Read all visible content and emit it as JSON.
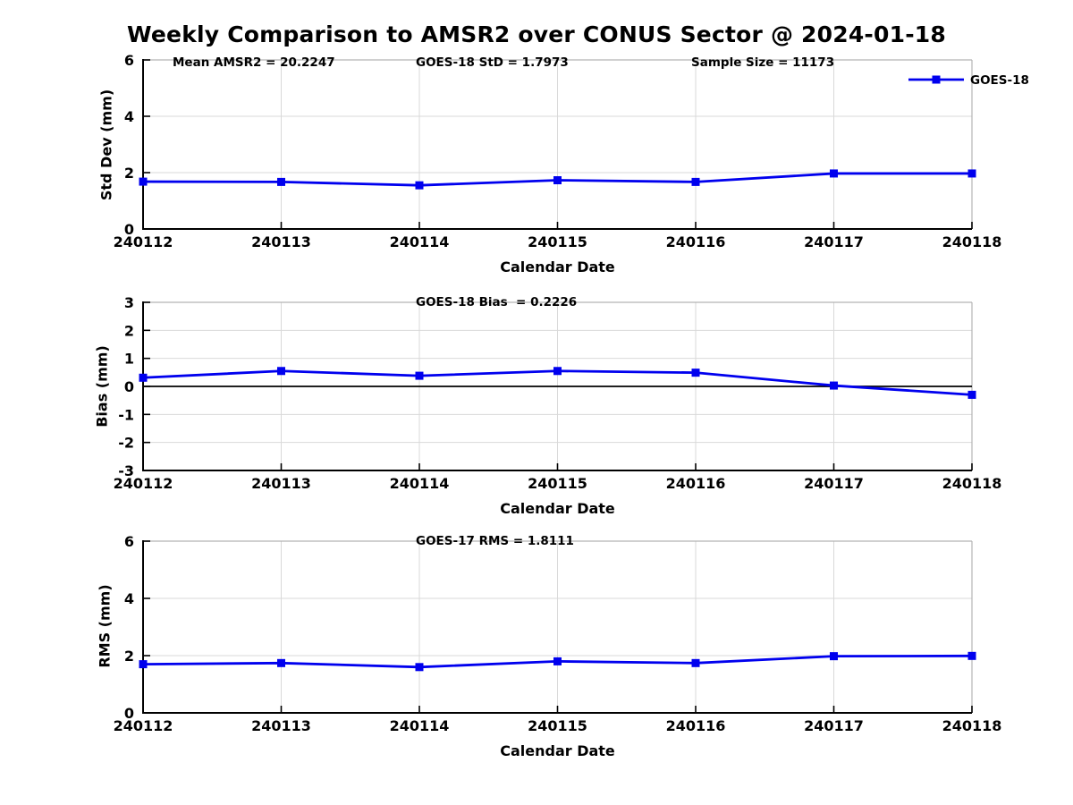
{
  "page": {
    "title": "Weekly Comparison to AMSR2 over CONUS Sector @ 2024-01-18"
  },
  "colors": {
    "line": "#0000EE",
    "marker": "#0000EE",
    "grid": "#d9d9d9",
    "spine": "#000000",
    "box": "#b3b3b3",
    "zero_line": "#000000",
    "text": "#000000",
    "background": "#ffffff"
  },
  "chart_data": [
    {
      "type": "line",
      "name": "std-dev",
      "annotations": [
        "Mean AMSR2 = 20.2247",
        "GOES-18 StD = 1.7973",
        "Sample Size = 11173"
      ],
      "categories": [
        "240112",
        "240113",
        "240114",
        "240115",
        "240116",
        "240117",
        "240118"
      ],
      "series": [
        {
          "name": "GOES-18",
          "values": [
            1.68,
            1.67,
            1.55,
            1.73,
            1.67,
            1.97,
            1.97
          ]
        }
      ],
      "xlabel": "Calendar Date",
      "ylabel": "Std Dev (mm)",
      "ylim": [
        0,
        6
      ],
      "yticks": [
        0,
        2,
        4,
        6
      ],
      "grid": true,
      "legend": {
        "label": "GOES-18",
        "position": "top-right"
      }
    },
    {
      "type": "line",
      "name": "bias",
      "annotations": [
        "GOES-18 Bias  = 0.2226"
      ],
      "categories": [
        "240112",
        "240113",
        "240114",
        "240115",
        "240116",
        "240117",
        "240118"
      ],
      "series": [
        {
          "name": "GOES-18",
          "values": [
            0.31,
            0.55,
            0.38,
            0.55,
            0.49,
            0.03,
            -0.3
          ]
        }
      ],
      "xlabel": "Calendar Date",
      "ylabel": "Bias (mm)",
      "ylim": [
        -3,
        3
      ],
      "yticks": [
        -3,
        -2,
        -1,
        0,
        1,
        2,
        3
      ],
      "grid": true,
      "zero_line": 0
    },
    {
      "type": "line",
      "name": "rms",
      "annotations": [
        "GOES-17 RMS = 1.8111"
      ],
      "categories": [
        "240112",
        "240113",
        "240114",
        "240115",
        "240116",
        "240117",
        "240118"
      ],
      "series": [
        {
          "name": "GOES-18",
          "values": [
            1.7,
            1.74,
            1.6,
            1.8,
            1.74,
            1.98,
            1.99
          ]
        }
      ],
      "xlabel": "Calendar Date",
      "ylabel": "RMS (mm)",
      "ylim": [
        0,
        6
      ],
      "yticks": [
        0,
        2,
        4,
        6
      ],
      "grid": true
    }
  ]
}
